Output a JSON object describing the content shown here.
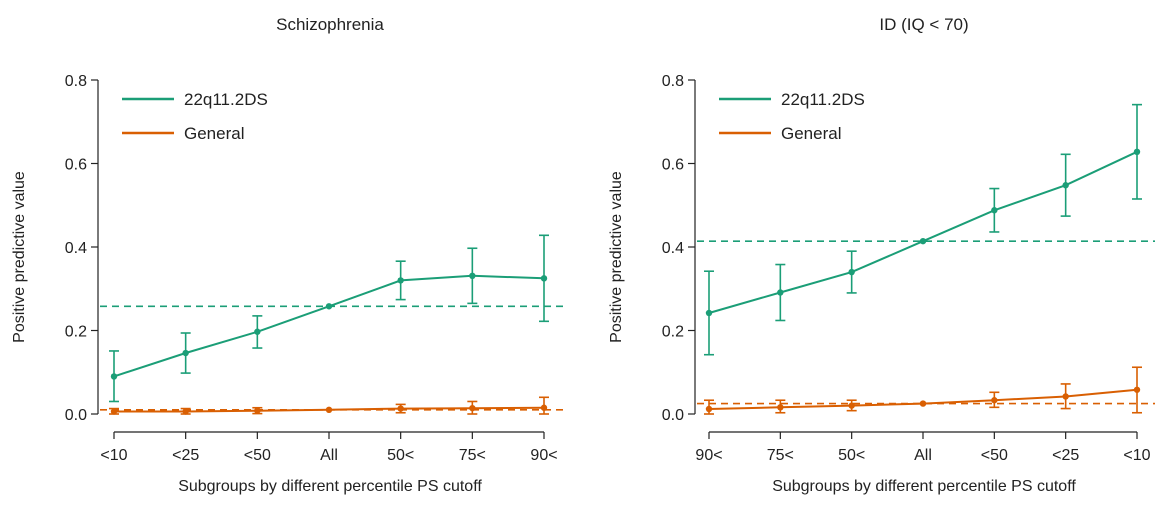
{
  "chart_data": [
    {
      "type": "line",
      "title": "Schizophrenia",
      "xlabel": "Subgroups by different percentile PS cutoff",
      "ylabel": "Positive predictive value",
      "categories": [
        "<10",
        "<25",
        "<50",
        "All",
        "50<",
        "75<",
        "90<"
      ],
      "ylim": [
        0,
        0.8
      ],
      "yticks": [
        "0.0",
        "0.2",
        "0.4",
        "0.6",
        "0.8"
      ],
      "grid": false,
      "legend_position": "top-left",
      "series": [
        {
          "name": "22q11.2DS",
          "color": "#1b9e77",
          "values": [
            0.09,
            0.146,
            0.197,
            0.258,
            0.32,
            0.331,
            0.325
          ],
          "lower": [
            0.03,
            0.098,
            0.158,
            0.258,
            0.274,
            0.265,
            0.222
          ],
          "upper": [
            0.151,
            0.194,
            0.235,
            0.258,
            0.366,
            0.397,
            0.428
          ],
          "reference": 0.258
        },
        {
          "name": "General",
          "color": "#d95f02",
          "values": [
            0.006,
            0.006,
            0.008,
            0.01,
            0.013,
            0.014,
            0.015
          ],
          "lower": [
            0.0,
            0.0,
            0.001,
            0.01,
            0.003,
            0.0,
            0.0
          ],
          "upper": [
            0.013,
            0.013,
            0.015,
            0.01,
            0.023,
            0.03,
            0.04
          ],
          "reference": 0.01
        }
      ]
    },
    {
      "type": "line",
      "title": "ID (IQ < 70)",
      "xlabel": "Subgroups by different percentile PS cutoff",
      "ylabel": "Positive predictive value",
      "categories": [
        "90<",
        "75<",
        "50<",
        "All",
        "<50",
        "<25",
        "<10"
      ],
      "ylim": [
        0,
        0.8
      ],
      "yticks": [
        "0.0",
        "0.2",
        "0.4",
        "0.6",
        "0.8"
      ],
      "grid": false,
      "legend_position": "top-left",
      "series": [
        {
          "name": "22q11.2DS",
          "color": "#1b9e77",
          "values": [
            0.242,
            0.291,
            0.34,
            0.414,
            0.488,
            0.548,
            0.628
          ],
          "lower": [
            0.142,
            0.224,
            0.29,
            0.414,
            0.436,
            0.474,
            0.515
          ],
          "upper": [
            0.342,
            0.358,
            0.39,
            0.414,
            0.54,
            0.622,
            0.741
          ],
          "reference": 0.414
        },
        {
          "name": "General",
          "color": "#d95f02",
          "values": [
            0.012,
            0.016,
            0.02,
            0.025,
            0.033,
            0.042,
            0.058
          ],
          "lower": [
            0.0,
            0.003,
            0.008,
            0.025,
            0.016,
            0.013,
            0.003
          ],
          "upper": [
            0.033,
            0.033,
            0.033,
            0.025,
            0.052,
            0.072,
            0.112
          ],
          "reference": 0.025
        }
      ]
    }
  ]
}
